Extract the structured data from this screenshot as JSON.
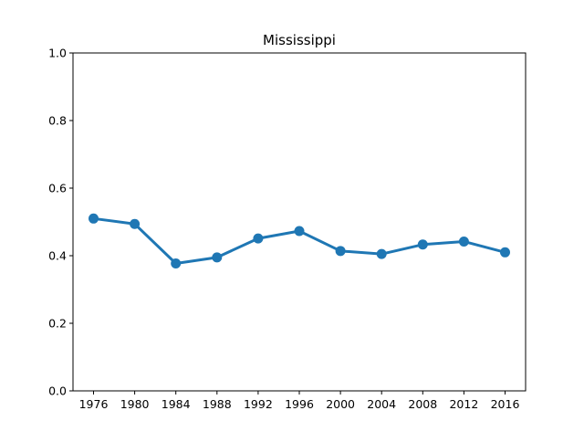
{
  "chart_data": {
    "type": "line",
    "title": "Mississippi",
    "xlabel": "",
    "ylabel": "",
    "categories": [
      "1976",
      "1980",
      "1984",
      "1988",
      "1992",
      "1996",
      "2000",
      "2004",
      "2008",
      "2012",
      "2016"
    ],
    "series": [
      {
        "values": [
          0.51,
          0.494,
          0.377,
          0.395,
          0.451,
          0.473,
          0.414,
          0.405,
          0.433,
          0.442,
          0.41
        ]
      }
    ],
    "ylim": [
      0,
      1
    ],
    "yticks": [
      "0.0",
      "0.2",
      "0.4",
      "0.6",
      "0.8",
      "1.0"
    ],
    "grid": false,
    "legend": false,
    "colors": {
      "line": "#1f77b4",
      "axis": "#000000",
      "background": "#ffffff"
    }
  }
}
